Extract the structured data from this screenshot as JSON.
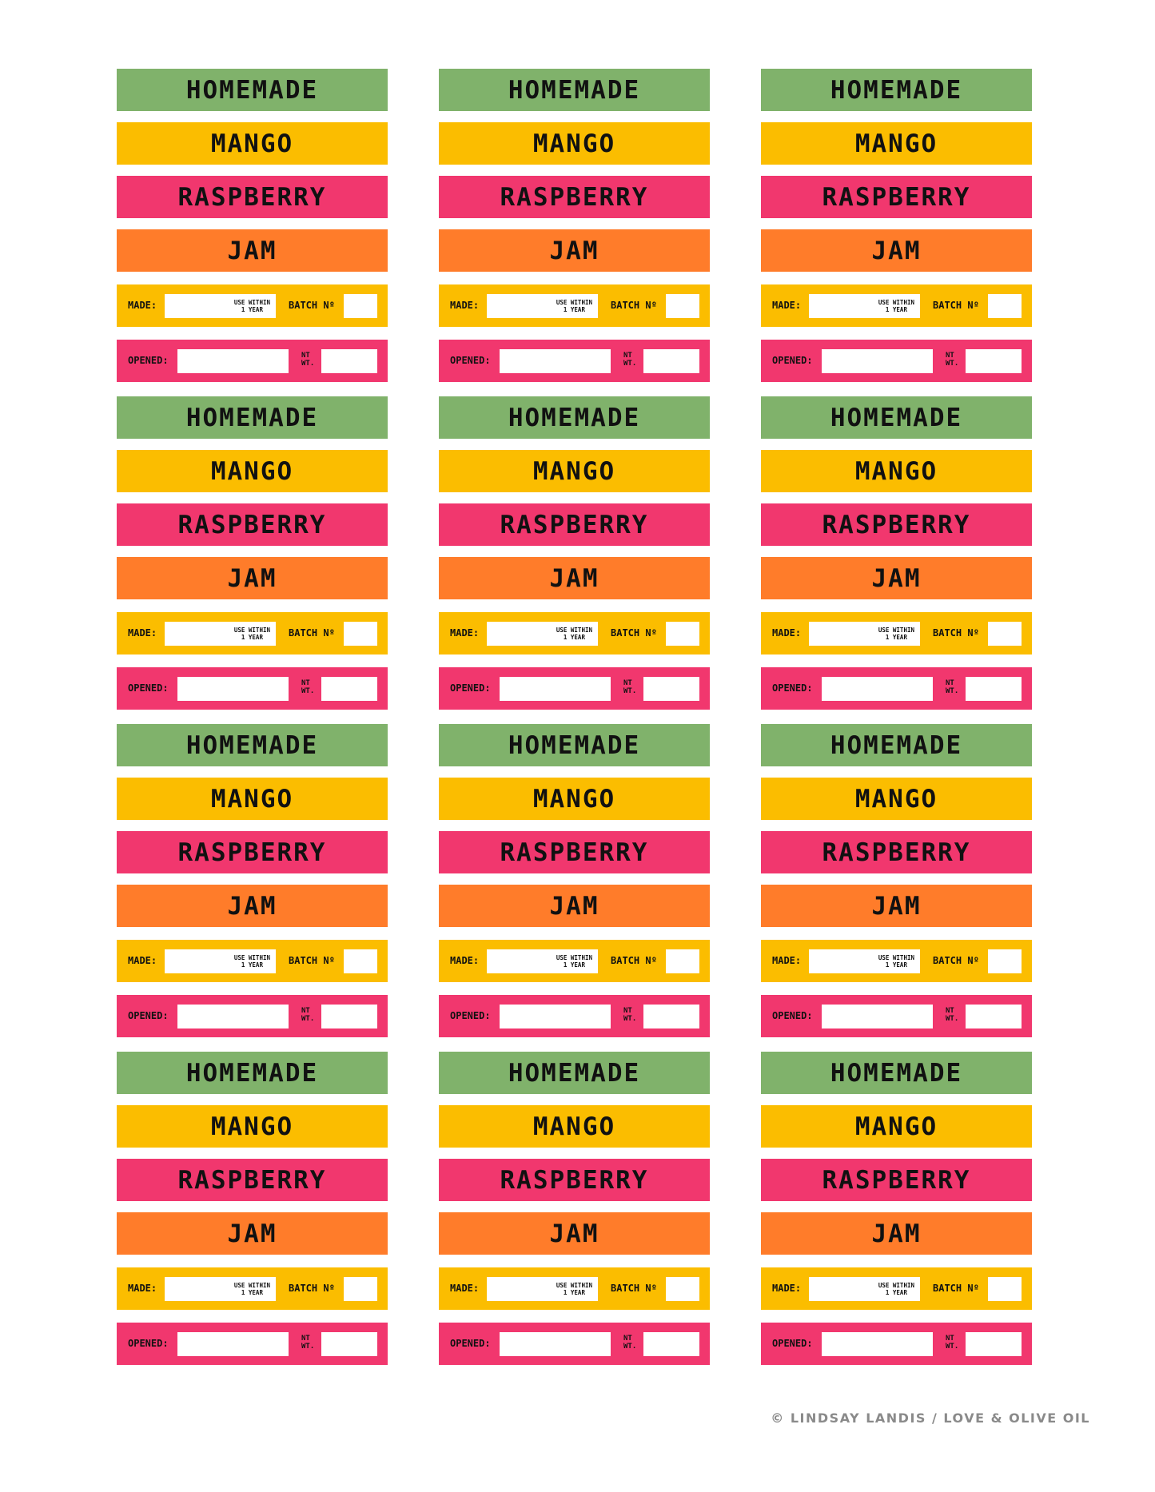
{
  "labels": {
    "homemade": "HOMEMADE",
    "flavor1": "MANGO",
    "flavor2": "RASPBERRY",
    "product": "JAM",
    "made": "MADE:",
    "use_within_1": "USE WITHIN",
    "use_within_2": "1 YEAR",
    "batch": "BATCH Nº",
    "opened": "OPENED:",
    "nt": "NT",
    "wt": "WT."
  },
  "grid": {
    "columns": 3,
    "rows": 4
  },
  "colors": {
    "homemade": "#80b26b",
    "mango": "#fbbd00",
    "raspberry": "#f1376e",
    "jam": "#ff7c2a",
    "made_row": "#fbbd00",
    "opened_row": "#f1376e"
  },
  "credit": "© LINDSAY LANDIS / LOVE & OLIVE OIL"
}
